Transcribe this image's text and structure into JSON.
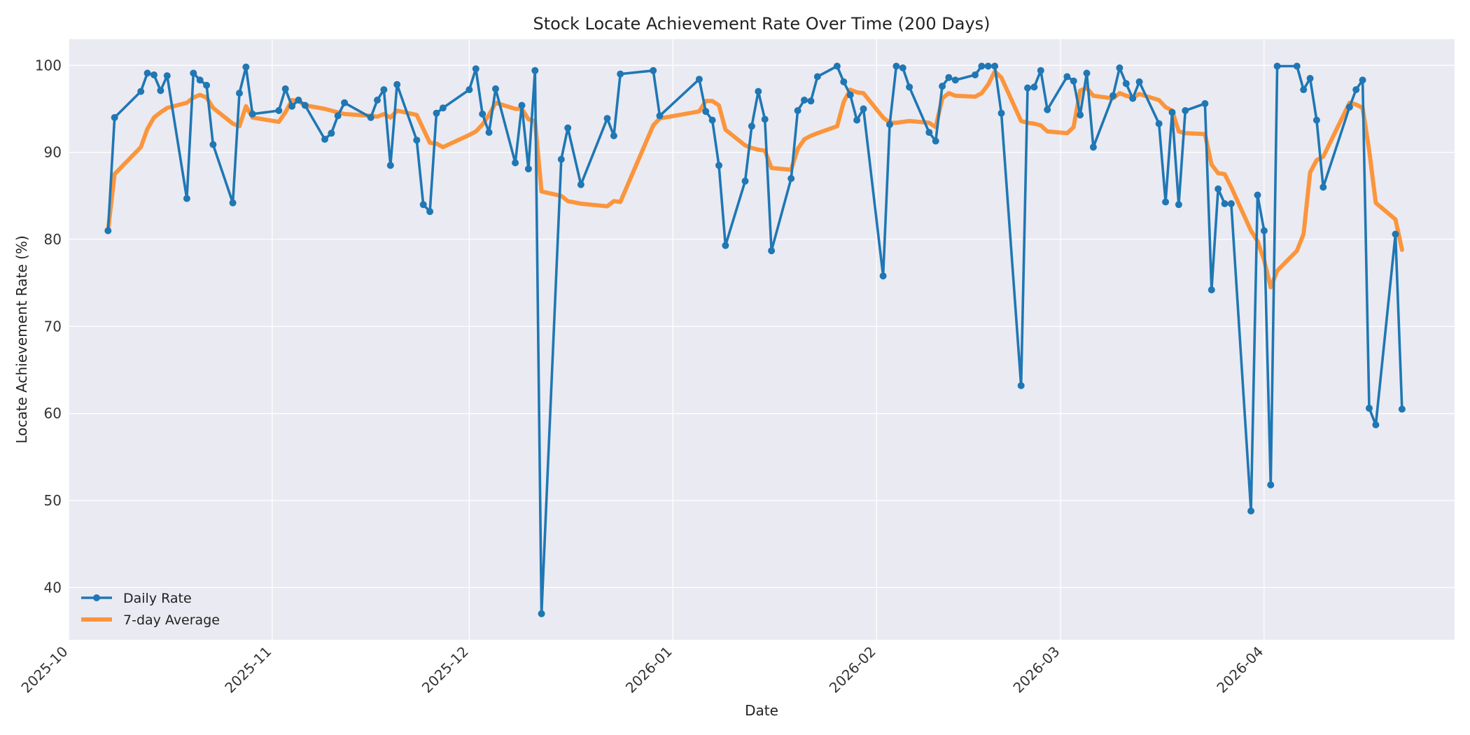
{
  "chart_data": {
    "type": "line",
    "title": "Stock Locate Achievement Rate Over Time (200 Days)",
    "xlabel": "Date",
    "ylabel": "Locate Achievement Rate (%)",
    "x_range": [
      "2025-10-01",
      "2026-04-30"
    ],
    "ylim": [
      34,
      103
    ],
    "grid": true,
    "legend_position": "lower-left",
    "x_ticks": [
      {
        "date": "2025-10-01",
        "label": "2025-10"
      },
      {
        "date": "2025-11-01",
        "label": "2025-11"
      },
      {
        "date": "2025-12-01",
        "label": "2025-12"
      },
      {
        "date": "2026-01-01",
        "label": "2026-01"
      },
      {
        "date": "2026-02-01",
        "label": "2026-02"
      },
      {
        "date": "2026-03-01",
        "label": "2026-03"
      },
      {
        "date": "2026-04-01",
        "label": "2026-04"
      }
    ],
    "y_ticks": [
      40,
      50,
      60,
      70,
      80,
      90,
      100
    ],
    "series": [
      {
        "name": "Daily Rate",
        "color": "#1f77b4",
        "points": [
          [
            "2025-10-07",
            81.0
          ],
          [
            "2025-10-08",
            94.0
          ],
          [
            "2025-10-12",
            97.0
          ],
          [
            "2025-10-13",
            99.1
          ],
          [
            "2025-10-14",
            98.9
          ],
          [
            "2025-10-15",
            97.1
          ],
          [
            "2025-10-16",
            98.8
          ],
          [
            "2025-10-19",
            84.7
          ],
          [
            "2025-10-20",
            99.1
          ],
          [
            "2025-10-21",
            98.3
          ],
          [
            "2025-10-22",
            97.7
          ],
          [
            "2025-10-23",
            90.9
          ],
          [
            "2025-10-26",
            84.2
          ],
          [
            "2025-10-27",
            96.8
          ],
          [
            "2025-10-28",
            99.8
          ],
          [
            "2025-10-29",
            94.4
          ],
          [
            "2025-11-02",
            94.8
          ],
          [
            "2025-11-03",
            97.3
          ],
          [
            "2025-11-04",
            95.3
          ],
          [
            "2025-11-05",
            96.0
          ],
          [
            "2025-11-06",
            95.4
          ],
          [
            "2025-11-09",
            91.5
          ],
          [
            "2025-11-10",
            92.2
          ],
          [
            "2025-11-11",
            94.2
          ],
          [
            "2025-11-12",
            95.7
          ],
          [
            "2025-11-16",
            94.0
          ],
          [
            "2025-11-17",
            96.0
          ],
          [
            "2025-11-18",
            97.2
          ],
          [
            "2025-11-19",
            88.5
          ],
          [
            "2025-11-20",
            97.8
          ],
          [
            "2025-11-23",
            91.4
          ],
          [
            "2025-11-24",
            84.0
          ],
          [
            "2025-11-25",
            83.2
          ],
          [
            "2025-11-26",
            94.5
          ],
          [
            "2025-11-27",
            95.1
          ],
          [
            "2025-12-01",
            97.2
          ],
          [
            "2025-12-02",
            99.6
          ],
          [
            "2025-12-03",
            94.4
          ],
          [
            "2025-12-04",
            92.3
          ],
          [
            "2025-12-05",
            97.3
          ],
          [
            "2025-12-08",
            88.8
          ],
          [
            "2025-12-09",
            95.4
          ],
          [
            "2025-12-10",
            88.1
          ],
          [
            "2025-12-11",
            99.4
          ],
          [
            "2025-12-12",
            37.0
          ],
          [
            "2025-12-15",
            89.2
          ],
          [
            "2025-12-16",
            92.8
          ],
          [
            "2025-12-18",
            86.3
          ],
          [
            "2025-12-22",
            93.9
          ],
          [
            "2025-12-23",
            91.9
          ],
          [
            "2025-12-24",
            99.0
          ],
          [
            "2025-12-29",
            99.4
          ],
          [
            "2025-12-30",
            94.2
          ],
          [
            "2026-01-05",
            98.4
          ],
          [
            "2026-01-06",
            94.7
          ],
          [
            "2026-01-07",
            93.7
          ],
          [
            "2026-01-08",
            88.5
          ],
          [
            "2026-01-09",
            79.3
          ],
          [
            "2026-01-12",
            86.7
          ],
          [
            "2026-01-13",
            93.0
          ],
          [
            "2026-01-14",
            97.0
          ],
          [
            "2026-01-15",
            93.8
          ],
          [
            "2026-01-16",
            78.7
          ],
          [
            "2026-01-19",
            87.0
          ],
          [
            "2026-01-20",
            94.8
          ],
          [
            "2026-01-21",
            96.0
          ],
          [
            "2026-01-22",
            95.9
          ],
          [
            "2026-01-23",
            98.7
          ],
          [
            "2026-01-26",
            99.9
          ],
          [
            "2026-01-27",
            98.1
          ],
          [
            "2026-01-28",
            96.6
          ],
          [
            "2026-01-29",
            93.7
          ],
          [
            "2026-01-30",
            95.0
          ],
          [
            "2026-02-02",
            75.8
          ],
          [
            "2026-02-03",
            93.2
          ],
          [
            "2026-02-04",
            99.9
          ],
          [
            "2026-02-05",
            99.7
          ],
          [
            "2026-02-06",
            97.5
          ],
          [
            "2026-02-09",
            92.3
          ],
          [
            "2026-02-10",
            91.3
          ],
          [
            "2026-02-11",
            97.6
          ],
          [
            "2026-02-12",
            98.6
          ],
          [
            "2026-02-13",
            98.3
          ],
          [
            "2026-02-16",
            98.9
          ],
          [
            "2026-02-17",
            99.9
          ],
          [
            "2026-02-18",
            99.9
          ],
          [
            "2026-02-19",
            99.9
          ],
          [
            "2026-02-20",
            94.5
          ],
          [
            "2026-02-23",
            63.2
          ],
          [
            "2026-02-24",
            97.4
          ],
          [
            "2026-02-25",
            97.5
          ],
          [
            "2026-02-26",
            99.4
          ],
          [
            "2026-02-27",
            94.9
          ],
          [
            "2026-03-02",
            98.7
          ],
          [
            "2026-03-03",
            98.2
          ],
          [
            "2026-03-04",
            94.3
          ],
          [
            "2026-03-05",
            99.1
          ],
          [
            "2026-03-06",
            90.6
          ],
          [
            "2026-03-09",
            96.5
          ],
          [
            "2026-03-10",
            99.7
          ],
          [
            "2026-03-11",
            97.9
          ],
          [
            "2026-03-12",
            96.2
          ],
          [
            "2026-03-13",
            98.1
          ],
          [
            "2026-03-16",
            93.3
          ],
          [
            "2026-03-17",
            84.3
          ],
          [
            "2026-03-18",
            94.6
          ],
          [
            "2026-03-19",
            84.0
          ],
          [
            "2026-03-20",
            94.8
          ],
          [
            "2026-03-23",
            95.6
          ],
          [
            "2026-03-24",
            74.2
          ],
          [
            "2026-03-25",
            85.8
          ],
          [
            "2026-03-26",
            84.1
          ],
          [
            "2026-03-27",
            84.1
          ],
          [
            "2026-03-30",
            48.8
          ],
          [
            "2026-03-31",
            85.1
          ],
          [
            "2026-04-01",
            81.0
          ],
          [
            "2026-04-02",
            51.8
          ],
          [
            "2026-04-03",
            99.9
          ],
          [
            "2026-04-06",
            99.9
          ],
          [
            "2026-04-07",
            97.2
          ],
          [
            "2026-04-08",
            98.5
          ],
          [
            "2026-04-09",
            93.7
          ],
          [
            "2026-04-10",
            86.0
          ],
          [
            "2026-04-14",
            95.2
          ],
          [
            "2026-04-15",
            97.2
          ],
          [
            "2026-04-16",
            98.3
          ],
          [
            "2026-04-17",
            60.6
          ],
          [
            "2026-04-18",
            58.7
          ],
          [
            "2026-04-21",
            80.6
          ],
          [
            "2026-04-22",
            60.5
          ]
        ]
      },
      {
        "name": "7-day Average",
        "color": "#ff7f0e",
        "points": [
          [
            "2025-10-07",
            81.0
          ],
          [
            "2025-10-08",
            87.5
          ],
          [
            "2025-10-12",
            90.6
          ],
          [
            "2025-10-13",
            92.7
          ],
          [
            "2025-10-14",
            94.0
          ],
          [
            "2025-10-15",
            94.6
          ],
          [
            "2025-10-16",
            95.1
          ],
          [
            "2025-10-19",
            95.7
          ],
          [
            "2025-10-20",
            96.3
          ],
          [
            "2025-10-21",
            96.6
          ],
          [
            "2025-10-22",
            96.3
          ],
          [
            "2025-10-23",
            95.1
          ],
          [
            "2025-10-26",
            93.3
          ],
          [
            "2025-10-27",
            93.0
          ],
          [
            "2025-10-28",
            95.3
          ],
          [
            "2025-10-29",
            94.0
          ],
          [
            "2025-11-02",
            93.5
          ],
          [
            "2025-11-03",
            94.6
          ],
          [
            "2025-11-04",
            96.0
          ],
          [
            "2025-11-05",
            95.9
          ],
          [
            "2025-11-06",
            95.4
          ],
          [
            "2025-11-09",
            95.0
          ],
          [
            "2025-11-10",
            94.8
          ],
          [
            "2025-11-11",
            94.6
          ],
          [
            "2025-11-12",
            94.4
          ],
          [
            "2025-11-16",
            94.2
          ],
          [
            "2025-11-17",
            94.1
          ],
          [
            "2025-11-18",
            94.4
          ],
          [
            "2025-11-19",
            94.0
          ],
          [
            "2025-11-20",
            94.8
          ],
          [
            "2025-11-23",
            94.3
          ],
          [
            "2025-11-24",
            92.7
          ],
          [
            "2025-11-25",
            91.1
          ],
          [
            "2025-11-26",
            91.0
          ],
          [
            "2025-11-27",
            90.6
          ],
          [
            "2025-12-01",
            92.0
          ],
          [
            "2025-12-02",
            92.4
          ],
          [
            "2025-12-03",
            93.2
          ],
          [
            "2025-12-04",
            94.3
          ],
          [
            "2025-12-05",
            95.7
          ],
          [
            "2025-12-08",
            95.0
          ],
          [
            "2025-12-09",
            95.0
          ],
          [
            "2025-12-10",
            93.8
          ],
          [
            "2025-12-11",
            93.6
          ],
          [
            "2025-12-12",
            85.5
          ],
          [
            "2025-12-15",
            85.0
          ],
          [
            "2025-12-16",
            84.4
          ],
          [
            "2025-12-18",
            84.1
          ],
          [
            "2025-12-22",
            83.8
          ],
          [
            "2025-12-23",
            84.4
          ],
          [
            "2025-12-24",
            84.3
          ],
          [
            "2025-12-29",
            93.1
          ],
          [
            "2025-12-30",
            93.9
          ],
          [
            "2026-01-05",
            94.7
          ],
          [
            "2026-01-06",
            95.9
          ],
          [
            "2026-01-07",
            95.9
          ],
          [
            "2026-01-08",
            95.4
          ],
          [
            "2026-01-09",
            92.6
          ],
          [
            "2026-01-12",
            90.8
          ],
          [
            "2026-01-13",
            90.5
          ],
          [
            "2026-01-14",
            90.3
          ],
          [
            "2026-01-15",
            90.2
          ],
          [
            "2026-01-16",
            88.2
          ],
          [
            "2026-01-19",
            88.0
          ],
          [
            "2026-01-20",
            90.4
          ],
          [
            "2026-01-21",
            91.5
          ],
          [
            "2026-01-22",
            91.9
          ],
          [
            "2026-01-23",
            92.2
          ],
          [
            "2026-01-26",
            93.0
          ],
          [
            "2026-01-27",
            95.8
          ],
          [
            "2026-01-28",
            97.2
          ],
          [
            "2026-01-29",
            96.9
          ],
          [
            "2026-01-30",
            96.8
          ],
          [
            "2026-02-02",
            94.0
          ],
          [
            "2026-02-03",
            93.4
          ],
          [
            "2026-02-04",
            93.4
          ],
          [
            "2026-02-05",
            93.5
          ],
          [
            "2026-02-06",
            93.6
          ],
          [
            "2026-02-09",
            93.4
          ],
          [
            "2026-02-10",
            92.9
          ],
          [
            "2026-02-11",
            96.2
          ],
          [
            "2026-02-12",
            96.8
          ],
          [
            "2026-02-13",
            96.5
          ],
          [
            "2026-02-16",
            96.4
          ],
          [
            "2026-02-17",
            96.8
          ],
          [
            "2026-02-18",
            97.8
          ],
          [
            "2026-02-19",
            99.3
          ],
          [
            "2026-02-20",
            98.6
          ],
          [
            "2026-02-23",
            93.6
          ],
          [
            "2026-02-24",
            93.4
          ],
          [
            "2026-02-25",
            93.3
          ],
          [
            "2026-02-26",
            93.1
          ],
          [
            "2026-02-27",
            92.4
          ],
          [
            "2026-03-02",
            92.2
          ],
          [
            "2026-03-03",
            92.9
          ],
          [
            "2026-03-04",
            97.1
          ],
          [
            "2026-03-05",
            97.4
          ],
          [
            "2026-03-06",
            96.5
          ],
          [
            "2026-03-09",
            96.2
          ],
          [
            "2026-03-10",
            96.8
          ],
          [
            "2026-03-11",
            96.5
          ],
          [
            "2026-03-12",
            96.3
          ],
          [
            "2026-03-13",
            96.7
          ],
          [
            "2026-03-16",
            96.0
          ],
          [
            "2026-03-17",
            95.2
          ],
          [
            "2026-03-18",
            94.8
          ],
          [
            "2026-03-19",
            92.4
          ],
          [
            "2026-03-20",
            92.2
          ],
          [
            "2026-03-23",
            92.1
          ],
          [
            "2026-03-24",
            88.6
          ],
          [
            "2026-03-25",
            87.6
          ],
          [
            "2026-03-26",
            87.5
          ],
          [
            "2026-03-27",
            86.0
          ],
          [
            "2026-03-30",
            81.0
          ],
          [
            "2026-03-31",
            79.8
          ],
          [
            "2026-04-01",
            77.6
          ],
          [
            "2026-04-02",
            74.5
          ],
          [
            "2026-04-03",
            76.4
          ],
          [
            "2026-04-06",
            78.7
          ],
          [
            "2026-04-07",
            80.6
          ],
          [
            "2026-04-08",
            87.7
          ],
          [
            "2026-04-09",
            89.1
          ],
          [
            "2026-04-10",
            89.5
          ],
          [
            "2026-04-14",
            95.7
          ],
          [
            "2026-04-15",
            95.5
          ],
          [
            "2026-04-16",
            95.1
          ],
          [
            "2026-04-17",
            90.2
          ],
          [
            "2026-04-18",
            84.2
          ],
          [
            "2026-04-21",
            82.3
          ],
          [
            "2026-04-22",
            78.8
          ]
        ]
      }
    ]
  }
}
